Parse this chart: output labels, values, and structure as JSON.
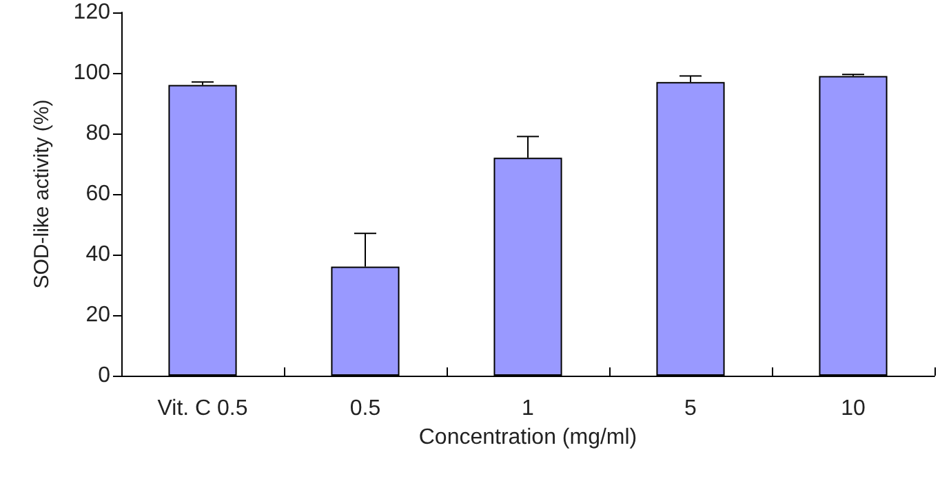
{
  "chart_data": {
    "type": "bar",
    "xlabel": "Concentration (mg/ml)",
    "ylabel": "SOD-like activity (%)",
    "categories": [
      "Vit. C 0.5",
      "0.5",
      "1",
      "5",
      "10"
    ],
    "values": [
      96,
      36,
      72,
      97,
      99
    ],
    "errors": [
      [
        96,
        97
      ],
      [
        36,
        47
      ],
      [
        72,
        79
      ],
      [
        97,
        99
      ],
      [
        99,
        99.5
      ]
    ],
    "color": "#9999ff",
    "ylim": [
      0,
      120
    ],
    "yticks": [
      0,
      20,
      40,
      60,
      80,
      100,
      120
    ],
    "grid": false
  }
}
